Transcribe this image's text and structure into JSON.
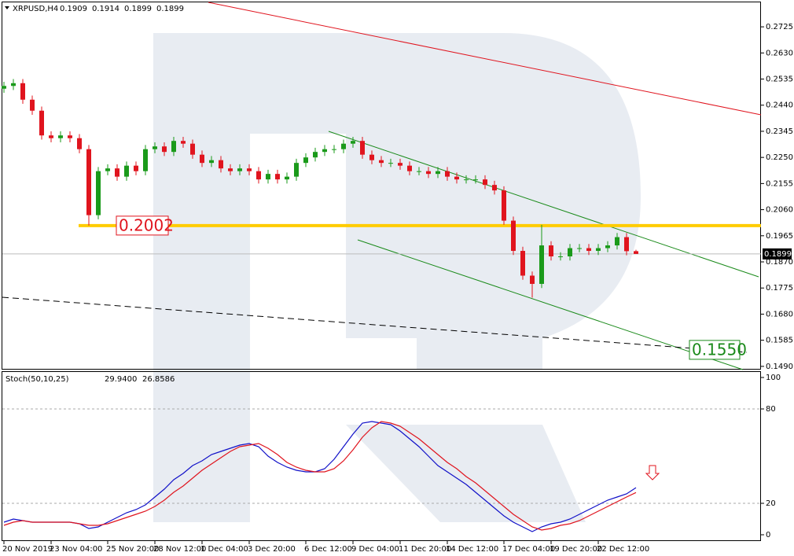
{
  "chart_data": {
    "type": "candlestick",
    "symbol": "XRPUSD,H4",
    "categories": [
      "20 Nov 2019",
      null,
      null,
      null,
      null,
      "23 Nov 04:00",
      null,
      null,
      null,
      null,
      null,
      "25 Nov 20:00",
      null,
      null,
      null,
      null,
      "28 Nov 12:00",
      null,
      null,
      null,
      null,
      "1 Dec 04:00",
      null,
      null,
      null,
      null,
      "3 Dec 20:00",
      null,
      null,
      null,
      null,
      null,
      "6 Dec 12:00",
      null,
      null,
      null,
      null,
      "9 Dec 04:00",
      null,
      null,
      null,
      null,
      "11 Dec 20:00",
      null,
      null,
      null,
      null,
      "14 Dec 12:00",
      null,
      null,
      null,
      null,
      null,
      "17 Dec 04:00",
      null,
      null,
      null,
      null,
      "19 Dec 20:00",
      null,
      null,
      null,
      null,
      "22 Dec 12:00",
      null,
      null,
      null,
      null
    ],
    "open": [
      0.25,
      0.251,
      0.252,
      0.246,
      0.242,
      0.233,
      0.232,
      0.233,
      0.232,
      0.228,
      0.204,
      0.22,
      0.221,
      0.218,
      0.222,
      0.22,
      0.228,
      0.229,
      0.227,
      0.231,
      0.23,
      0.226,
      0.223,
      0.224,
      0.221,
      0.22,
      0.221,
      0.22,
      0.217,
      0.219,
      0.217,
      0.218,
      0.223,
      0.225,
      0.227,
      0.228,
      0.228,
      0.23,
      0.231,
      0.226,
      0.224,
      0.223,
      0.223,
      0.222,
      0.22,
      0.22,
      0.219,
      0.22,
      0.218,
      0.217,
      0.217,
      0.217,
      0.215,
      0.213,
      0.202,
      0.191,
      0.182,
      0.179,
      0.193,
      0.189,
      0.189,
      0.192,
      0.192,
      0.191,
      0.192,
      0.193,
      0.196,
      0.1909
    ],
    "high": [
      0.2525,
      0.2535,
      0.2535,
      0.2475,
      0.2435,
      0.2345,
      0.2345,
      0.2345,
      0.2335,
      0.2295,
      0.2215,
      0.2225,
      0.2225,
      0.2235,
      0.2235,
      0.2295,
      0.2305,
      0.2305,
      0.2325,
      0.2325,
      0.2315,
      0.2275,
      0.2255,
      0.2255,
      0.2225,
      0.2225,
      0.2225,
      0.2215,
      0.2205,
      0.2205,
      0.2195,
      0.2245,
      0.2265,
      0.2285,
      0.2295,
      0.2295,
      0.2315,
      0.2325,
      0.2325,
      0.2275,
      0.2255,
      0.2245,
      0.2245,
      0.2235,
      0.2215,
      0.2215,
      0.2215,
      0.2215,
      0.2195,
      0.2185,
      0.2185,
      0.2185,
      0.2165,
      0.2145,
      0.2035,
      0.1925,
      0.1835,
      0.2005,
      0.1945,
      0.1905,
      0.1935,
      0.1935,
      0.1935,
      0.1935,
      0.1945,
      0.1975,
      0.1975,
      0.1914
    ],
    "low": [
      0.2485,
      0.2495,
      0.2445,
      0.2405,
      0.2315,
      0.2305,
      0.2305,
      0.2305,
      0.2265,
      0.2002,
      0.2025,
      0.2185,
      0.2165,
      0.2165,
      0.2185,
      0.2185,
      0.2265,
      0.2255,
      0.2255,
      0.2285,
      0.2245,
      0.2215,
      0.2215,
      0.2195,
      0.2185,
      0.2185,
      0.2185,
      0.2155,
      0.2155,
      0.2155,
      0.2155,
      0.2165,
      0.2215,
      0.2235,
      0.2255,
      0.2265,
      0.2265,
      0.2285,
      0.2245,
      0.2225,
      0.2215,
      0.2215,
      0.2205,
      0.2185,
      0.2185,
      0.2175,
      0.2175,
      0.2165,
      0.2155,
      0.2155,
      0.2155,
      0.2135,
      0.2115,
      0.2005,
      0.1895,
      0.1805,
      0.174,
      0.1775,
      0.1875,
      0.1875,
      0.1875,
      0.1905,
      0.1895,
      0.1895,
      0.1905,
      0.1915,
      0.1894,
      0.1899
    ],
    "close": [
      0.251,
      0.252,
      0.246,
      0.242,
      0.233,
      0.232,
      0.233,
      0.232,
      0.228,
      0.204,
      0.22,
      0.221,
      0.218,
      0.222,
      0.22,
      0.228,
      0.229,
      0.227,
      0.231,
      0.23,
      0.226,
      0.223,
      0.224,
      0.221,
      0.22,
      0.221,
      0.22,
      0.217,
      0.219,
      0.217,
      0.218,
      0.223,
      0.225,
      0.227,
      0.228,
      0.228,
      0.23,
      0.231,
      0.226,
      0.224,
      0.223,
      0.223,
      0.222,
      0.22,
      0.22,
      0.219,
      0.22,
      0.218,
      0.217,
      0.217,
      0.217,
      0.215,
      0.213,
      0.202,
      0.191,
      0.182,
      0.179,
      0.193,
      0.189,
      0.189,
      0.192,
      0.192,
      0.191,
      0.192,
      0.193,
      0.196,
      0.1909,
      0.1899
    ],
    "up_color": "#1a9a1a",
    "down_color": "#e0141e",
    "ylim": [
      0.1481,
      0.2814
    ],
    "yticks": [
      0.2725,
      {
        "value": 0.263,
        "label": "0.2630"
      },
      0.2535,
      {
        "value": 0.244,
        "label": "0.2440"
      },
      0.2345,
      {
        "value": 0.225,
        "label": "0.2250"
      },
      0.2155,
      {
        "value": 0.206,
        "label": "0.2060"
      },
      0.1965,
      {
        "value": 0.187,
        "label": "0.1870"
      },
      0.1775,
      {
        "value": 0.168,
        "label": "0.1680"
      },
      0.1585,
      {
        "value": 0.149,
        "label": "0.1490"
      }
    ],
    "support_level": 0.2002,
    "target": {
      "value": 0.155,
      "label": "0.1550"
    },
    "stoch": {
      "title": "Stoch(50,10,25)",
      "main": {
        "color": "#1010c8",
        "last_label": "29.9400",
        "values": [
          8,
          10,
          9,
          8,
          8,
          8,
          8,
          8,
          7,
          4,
          5,
          8,
          11,
          14,
          16,
          19,
          24,
          29,
          35,
          39,
          44,
          47,
          51,
          53,
          55,
          57,
          58,
          56,
          50,
          46,
          43,
          41,
          40,
          40,
          42,
          48,
          56,
          64,
          71,
          72,
          71,
          70,
          66,
          61,
          56,
          50,
          44,
          40,
          36,
          32,
          27,
          22,
          17,
          12,
          8,
          5,
          2,
          5,
          7,
          8,
          10,
          13,
          16,
          19,
          22,
          24,
          26,
          29.94
        ]
      },
      "signal": {
        "color": "#e0141e",
        "last_label": "26.8586",
        "values": [
          6,
          8,
          9,
          8,
          8,
          8,
          8,
          8,
          7,
          6,
          6,
          7,
          9,
          11,
          13,
          15,
          18,
          22,
          27,
          31,
          36,
          41,
          45,
          49,
          53,
          56,
          57,
          58,
          55,
          51,
          46,
          43,
          41,
          40,
          40,
          42,
          47,
          54,
          62,
          68,
          72,
          71,
          69,
          65,
          61,
          56,
          51,
          46,
          42,
          37,
          33,
          28,
          23,
          18,
          13,
          9,
          5,
          3,
          4,
          6,
          7,
          9,
          12,
          15,
          18,
          21,
          24,
          26.8586
        ]
      },
      "ylim": [
        -4,
        104
      ],
      "yticks": [
        0,
        20,
        80,
        100
      ]
    }
  }
}
